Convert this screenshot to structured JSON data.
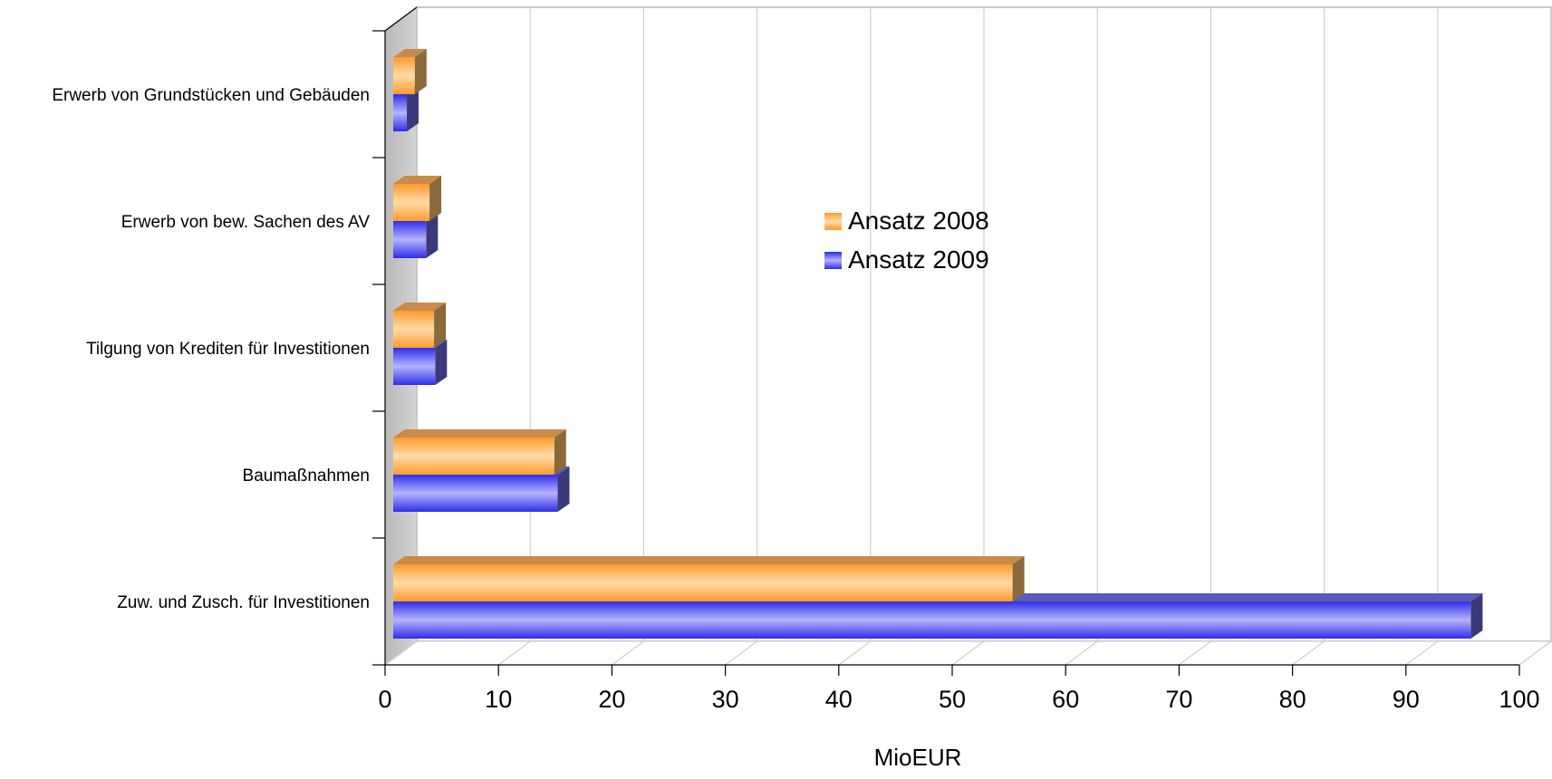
{
  "chart_data": {
    "type": "bar",
    "orientation": "horizontal",
    "three_d": true,
    "title": "",
    "xlabel": "MioEUR",
    "ylabel": "",
    "xlim": [
      0,
      100
    ],
    "x_ticks": [
      "0",
      "10",
      "20",
      "30",
      "40",
      "50",
      "60",
      "70",
      "80",
      "90",
      "100"
    ],
    "grid": true,
    "legend_position": "center",
    "categories": [
      "Erwerb von Grundstücken und Gebäuden",
      "Erwerb von bew. Sachen des AV",
      "Tilgung von Krediten für Investitionen",
      "Baumaßnahmen",
      "Zuw. und Zusch. für  Investitionen"
    ],
    "series": [
      {
        "name": "Ansatz 2008",
        "color": "#ff9a2e",
        "values": [
          1.9,
          3.2,
          3.6,
          14.2,
          54.6
        ]
      },
      {
        "name": "Ansatz 2009",
        "color": "#3a3ae8",
        "values": [
          1.2,
          2.9,
          3.7,
          14.5,
          95.0
        ]
      }
    ]
  }
}
